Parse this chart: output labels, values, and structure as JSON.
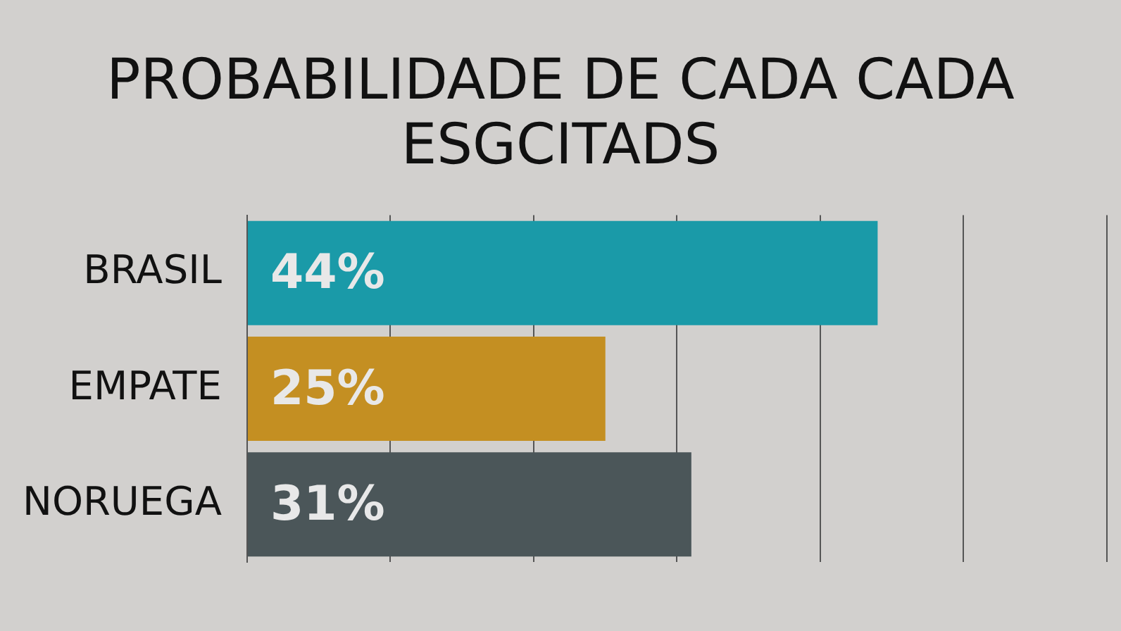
{
  "chart_data": {
    "type": "bar",
    "orientation": "horizontal",
    "title": "PROBABILIDADE DE CADA CADA ESGCITADS",
    "categories": [
      "BRASIL",
      "EMPATE",
      "NORUEGA"
    ],
    "values": [
      44,
      25,
      31
    ],
    "colors": [
      "#1a9aa8",
      "#c48f22",
      "#4b5659"
    ],
    "value_labels": [
      "44%",
      "25%",
      "31%"
    ],
    "xlim": [
      0,
      60
    ],
    "xticks": [
      {
        "value": 0,
        "label": null
      },
      {
        "value": 10,
        "label": null
      },
      {
        "value": 20,
        "label": null
      },
      {
        "value": 30,
        "label": null
      },
      {
        "value": 40,
        "label": null
      },
      {
        "value": 50,
        "label": null
      },
      {
        "value": 60,
        "label": null
      }
    ],
    "grid": "x",
    "tick_labels": "y",
    "legend": false
  }
}
